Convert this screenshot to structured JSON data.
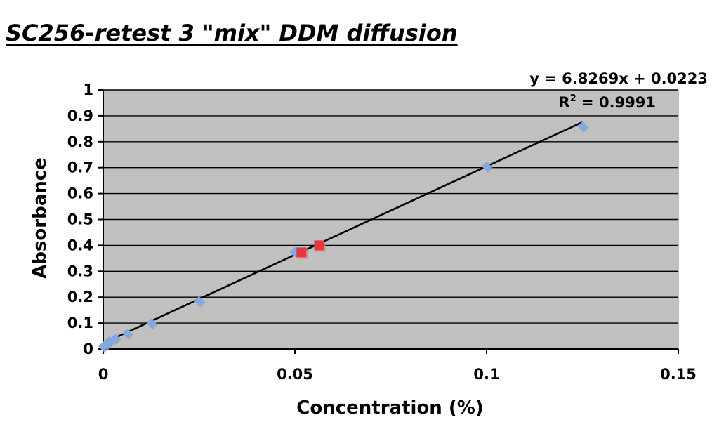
{
  "chart_data": {
    "type": "scatter",
    "title": "SC256-retest 3 \"mix\" DDM diffusion",
    "xlabel": "Concentration (%)",
    "ylabel": "Absorbance",
    "xlim": [
      0,
      0.15
    ],
    "ylim": [
      0,
      1
    ],
    "x_ticks": [
      0,
      0.05,
      0.1,
      0.15
    ],
    "x_tick_labels": [
      "0",
      "0.05",
      "0.1",
      "0.15"
    ],
    "y_ticks": [
      0,
      0.1,
      0.2,
      0.3,
      0.4,
      0.5,
      0.6,
      0.7,
      0.8,
      0.9,
      1
    ],
    "y_tick_labels": [
      "0",
      "0.1",
      "0.2",
      "0.3",
      "0.4",
      "0.5",
      "0.6",
      "0.7",
      "0.8",
      "0.9",
      "1"
    ],
    "grid": "horizontal",
    "plot_background": "#c0c0c0",
    "series": [
      {
        "marker": "diamond",
        "color": "#7fa9e6",
        "points": [
          {
            "x": 0,
            "y": 0.01
          },
          {
            "x": 0.0008,
            "y": 0.02
          },
          {
            "x": 0.0016,
            "y": 0.03
          },
          {
            "x": 0.0031,
            "y": 0.04
          },
          {
            "x": 0.0063,
            "y": 0.06
          },
          {
            "x": 0.0125,
            "y": 0.1
          },
          {
            "x": 0.025,
            "y": 0.185
          },
          {
            "x": 0.05,
            "y": 0.375
          },
          {
            "x": 0.1,
            "y": 0.705
          },
          {
            "x": 0.125,
            "y": 0.86
          }
        ]
      },
      {
        "marker": "square",
        "color": "#e8383b",
        "points": [
          {
            "x": 0.0517,
            "y": 0.373
          },
          {
            "x": 0.0563,
            "y": 0.4
          }
        ]
      }
    ],
    "trendline": {
      "slope": 6.8269,
      "intercept": 0.0223,
      "x_range": [
        0,
        0.125
      ],
      "color": "#000000",
      "equation_label": "y = 6.8269x + 0.0223",
      "r2_prefix": "R",
      "r2_sup": "2",
      "r2_value": " = 0.9991"
    }
  }
}
